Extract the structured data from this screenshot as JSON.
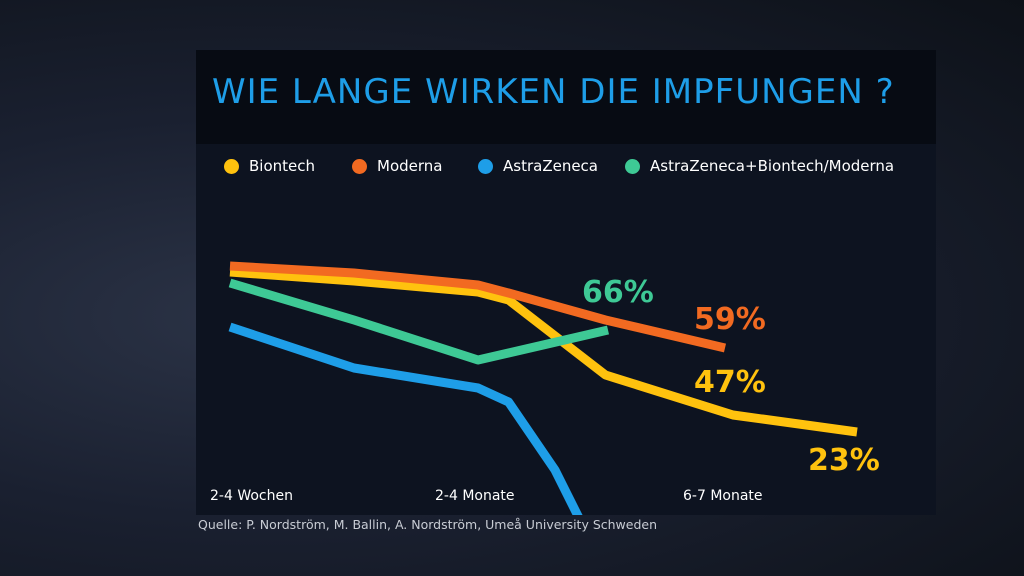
{
  "header": {
    "title": "WIE LANGE WIRKEN DIE IMPFUNGEN ?"
  },
  "colors": {
    "title": "#1e9ee8",
    "biontech": "#ffc20e",
    "moderna": "#f26a21",
    "astrazeneca": "#1e9ee8",
    "mixed": "#3ec995"
  },
  "chart_data": {
    "type": "line",
    "title": "WIE LANGE WIRKEN DIE IMPFUNGEN ?",
    "xlabel": "",
    "ylabel": "",
    "categories": [
      "2-4 Wochen",
      "2-4 Monate",
      "6-7 Monate"
    ],
    "grid": false,
    "legend_position": "top",
    "ylim": [
      0,
      100
    ],
    "series": [
      {
        "name": "Biontech",
        "color": "#ffc20e",
        "x": [
          0,
          1,
          2
        ],
        "values": [
          92,
          89,
          23
        ],
        "end_label": "23%"
      },
      {
        "name": "Moderna",
        "color": "#f26a21",
        "x": [
          0,
          1,
          1.6
        ],
        "values": [
          96,
          93,
          59
        ],
        "end_label": "59%"
      },
      {
        "name": "AstraZeneca",
        "color": "#1e9ee8",
        "x": [
          0,
          1,
          1.6
        ],
        "values": [
          68,
          62,
          0
        ],
        "end_label": ""
      },
      {
        "name": "AstraZeneca+Biontech/Moderna",
        "color": "#3ec995",
        "x": [
          0,
          1,
          1.1
        ],
        "values": [
          89,
          70,
          66
        ],
        "end_label": "66%"
      }
    ],
    "annotations": [
      {
        "text": "47%",
        "series": "Biontech"
      }
    ]
  },
  "source": "Quelle: P. Nordström, M. Ballin, A. Nordström, Umeå University Schweden"
}
